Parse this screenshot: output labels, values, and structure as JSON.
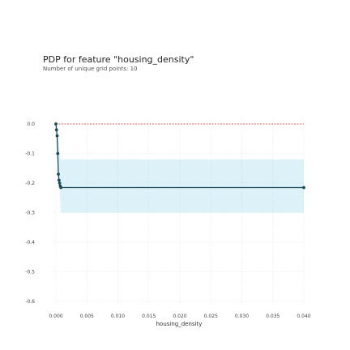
{
  "chart_data": {
    "type": "line",
    "title": "PDP for feature \"housing_density\"",
    "subtitle": "Number of unique grid points: 10",
    "xlabel": "housing_density",
    "ylabel": "",
    "xlim": [
      0.0,
      0.04
    ],
    "ylim": [
      -0.6,
      0.0
    ],
    "x_ticks": [
      "0.000",
      "0.005",
      "0.010",
      "0.015",
      "0.020",
      "0.025",
      "0.030",
      "0.035",
      "0.040"
    ],
    "y_ticks": [
      "0.0",
      "-0.1",
      "-0.2",
      "-0.3",
      "-0.4",
      "-0.5",
      "-0.6"
    ],
    "grid": true,
    "series": [
      {
        "name": "",
        "x": [
          0.0,
          0.0001,
          0.0002,
          0.0003,
          0.0004,
          0.0005,
          0.0006,
          0.0007,
          0.0008,
          0.04
        ],
        "y": [
          0.0,
          -0.02,
          -0.04,
          -0.1,
          -0.17,
          -0.19,
          -0.2,
          -0.21,
          -0.215,
          -0.215
        ],
        "color": "#1a4a5c"
      }
    ],
    "baseline": {
      "y": 0.0,
      "color": "#c0392b"
    },
    "confidence_band": {
      "x": [
        0.0,
        0.0008,
        0.04
      ],
      "lower": [
        0.0,
        -0.3,
        -0.3
      ],
      "upper": [
        0.0,
        -0.12,
        -0.12
      ],
      "color": "#66c2e0"
    }
  }
}
